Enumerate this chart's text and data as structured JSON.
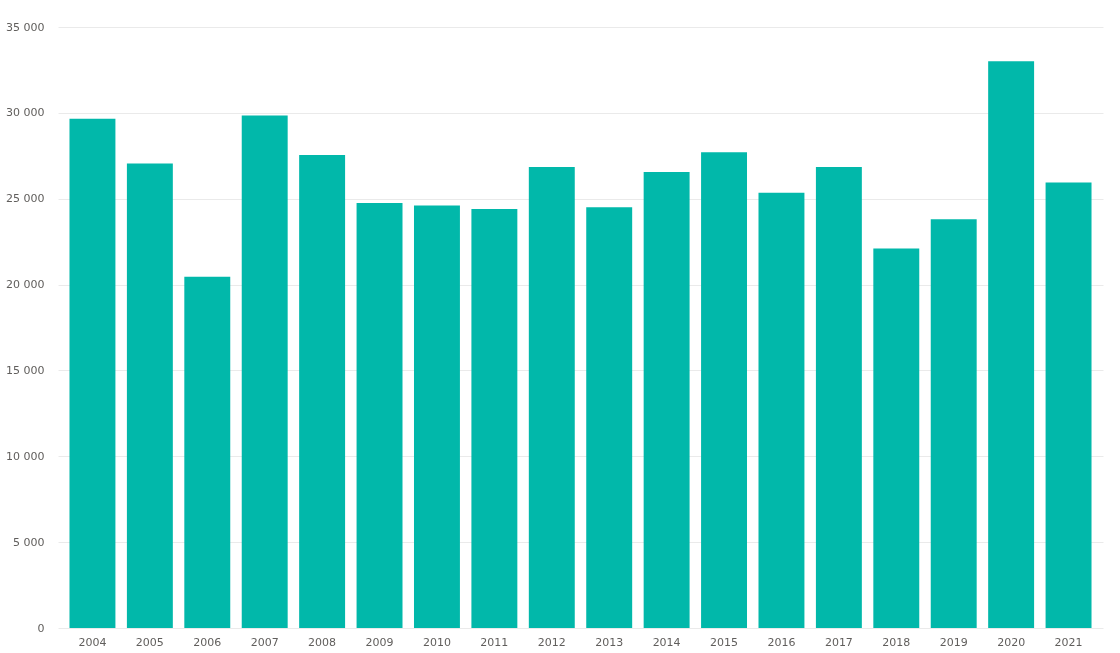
{
  "chart_data": {
    "type": "bar",
    "categories": [
      "2004",
      "2005",
      "2006",
      "2007",
      "2008",
      "2009",
      "2010",
      "2011",
      "2012",
      "2013",
      "2014",
      "2015",
      "2016",
      "2017",
      "2018",
      "2019",
      "2020",
      "2021"
    ],
    "values": [
      29650,
      27050,
      20450,
      29850,
      27550,
      24750,
      24600,
      24400,
      26850,
      24500,
      26550,
      27700,
      25350,
      26850,
      22100,
      23800,
      33000,
      25950
    ],
    "color": "#01b8aa",
    "ylim": [
      0,
      35000
    ],
    "yticks": [
      0,
      {
        "value": 5000,
        "label": "5 000"
      },
      {
        "value": 10000,
        "label": "10 000"
      },
      {
        "value": 15000,
        "label": "15 000"
      },
      {
        "value": 20000,
        "label": "20 000"
      },
      {
        "value": 25000,
        "label": "25 000"
      },
      {
        "value": 30000,
        "label": "30 000"
      },
      {
        "value": 35000,
        "label": "35 000"
      }
    ],
    "grid": "y"
  }
}
